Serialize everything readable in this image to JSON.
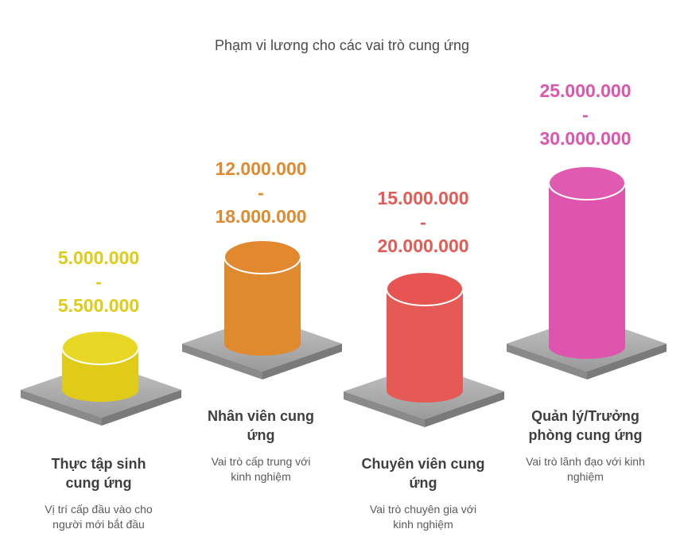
{
  "title": "Phạm vi lương cho các vai trò cung ứng",
  "roles": [
    {
      "min": "5.000.000",
      "sep": "-",
      "max": "5.500.000",
      "name_line1": "Thực tập sinh",
      "name_line2": "cung ứng",
      "desc_line1": "Vị trí cấp đầu vào cho",
      "desc_line2": "người mới bắt đầu",
      "color": "#E0CB18"
    },
    {
      "min": "12.000.000",
      "sep": "-",
      "max": "18.000.000",
      "name_line1": "Nhân viên cung",
      "name_line2": "ứng",
      "desc_line1": "Vai trò cấp trung với",
      "desc_line2": "kinh nghiệm",
      "color": "#E08A30"
    },
    {
      "min": "15.000.000",
      "sep": "-",
      "max": "20.000.000",
      "name_line1": "Chuyên viên cung",
      "name_line2": "ứng",
      "desc_line1": "Vai trò chuyên gia với",
      "desc_line2": "kinh nghiệm",
      "color": "#E55A55"
    },
    {
      "min": "25.000.000",
      "sep": "-",
      "max": "30.000.000",
      "name_line1": "Quản lý/Trưởng",
      "name_line2": "phòng cung ứng",
      "desc_line1": "Vai trò lãnh đạo với kinh",
      "desc_line2": "nghiệm",
      "color": "#DD55AD"
    }
  ]
}
